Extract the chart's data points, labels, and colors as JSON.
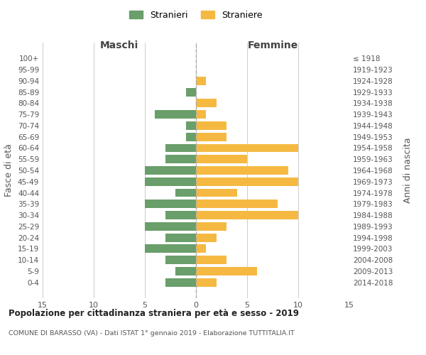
{
  "age_groups": [
    "100+",
    "95-99",
    "90-94",
    "85-89",
    "80-84",
    "75-79",
    "70-74",
    "65-69",
    "60-64",
    "55-59",
    "50-54",
    "45-49",
    "40-44",
    "35-39",
    "30-34",
    "25-29",
    "20-24",
    "15-19",
    "10-14",
    "5-9",
    "0-4"
  ],
  "birth_years": [
    "≤ 1918",
    "1919-1923",
    "1924-1928",
    "1929-1933",
    "1934-1938",
    "1939-1943",
    "1944-1948",
    "1949-1953",
    "1954-1958",
    "1959-1963",
    "1964-1968",
    "1969-1973",
    "1974-1978",
    "1979-1983",
    "1984-1988",
    "1989-1993",
    "1994-1998",
    "1999-2003",
    "2004-2008",
    "2009-2013",
    "2014-2018"
  ],
  "maschi": [
    0,
    0,
    0,
    1,
    0,
    4,
    1,
    1,
    3,
    3,
    5,
    5,
    2,
    5,
    3,
    5,
    3,
    5,
    3,
    2,
    3
  ],
  "femmine": [
    0,
    0,
    1,
    0,
    2,
    1,
    3,
    3,
    10,
    5,
    9,
    10,
    4,
    8,
    10,
    3,
    2,
    1,
    3,
    6,
    2
  ],
  "color_maschi": "#6a9e6a",
  "color_femmine": "#f5b942",
  "title_main": "Popolazione per cittadinanza straniera per età e sesso - 2019",
  "title_sub": "COMUNE DI BARASSO (VA) - Dati ISTAT 1° gennaio 2019 - Elaborazione TUTTITALIA.IT",
  "xlabel_left": "Maschi",
  "xlabel_right": "Femmine",
  "ylabel_left": "Fasce di età",
  "ylabel_right": "Anni di nascita",
  "legend_maschi": "Stranieri",
  "legend_femmine": "Straniere",
  "xlim": 15,
  "background_color": "#ffffff",
  "grid_color": "#cccccc",
  "dashed_line_color": "#aaaaaa"
}
